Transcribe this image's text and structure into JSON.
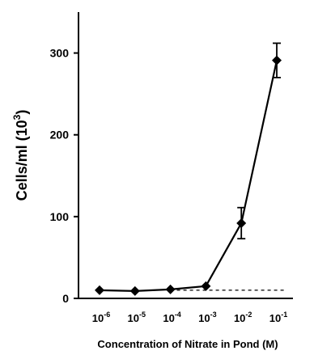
{
  "chart_data": {
    "type": "line",
    "xlabel": "Concentration of Nitrate in Pond (M)",
    "ylabel_main": "Cells/ml (10",
    "ylabel_sup": "3",
    "ylabel_close": ")",
    "ylim": [
      0,
      350
    ],
    "y_ticks": [
      "0",
      "100",
      "200",
      "300"
    ],
    "y_tick_values": [
      0,
      100,
      200,
      300
    ],
    "categories": [
      {
        "base": "10",
        "exp": "-6"
      },
      {
        "base": "10",
        "exp": "-5"
      },
      {
        "base": "10",
        "exp": "-4"
      },
      {
        "base": "10",
        "exp": "-3"
      },
      {
        "base": "10",
        "exp": "-2"
      },
      {
        "base": "10",
        "exp": "-1"
      }
    ],
    "series": [
      {
        "values": [
          10,
          9,
          11,
          15,
          92,
          291
        ],
        "error": [
          0,
          0,
          0,
          0,
          19,
          21
        ],
        "marker": "diamond",
        "color": "#000000"
      }
    ],
    "reference_line": {
      "value": 10,
      "style": "dashed",
      "from_index": 2,
      "to_index": 5
    },
    "grid": false
  }
}
